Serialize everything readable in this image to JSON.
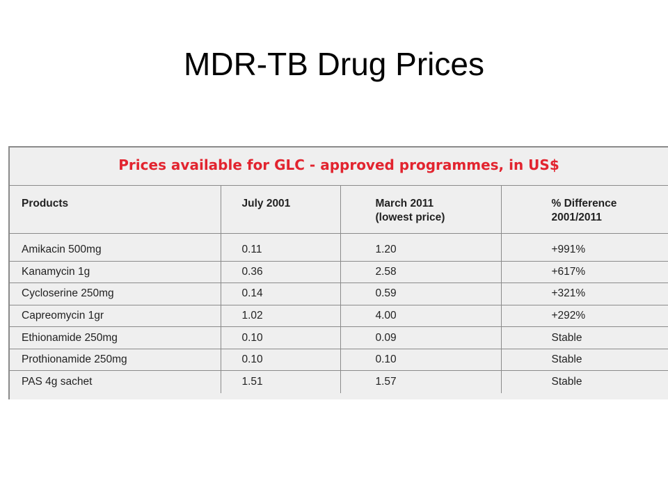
{
  "slide": {
    "title": "MDR-TB Drug Prices"
  },
  "table": {
    "caption": "Prices available for GLC - approved programmes, in US$",
    "headers": [
      {
        "line1": "Products",
        "line2": ""
      },
      {
        "line1": "July 2001",
        "line2": ""
      },
      {
        "line1": "March 2011",
        "line2": "(lowest price)"
      },
      {
        "line1": "% Difference",
        "line2": "2001/2011"
      }
    ],
    "rows": [
      [
        "Amikacin 500mg",
        "0.11",
        "1.20",
        "+991%"
      ],
      [
        "Kanamycin 1g",
        "0.36",
        "2.58",
        "+617%"
      ],
      [
        "Cycloserine 250mg",
        "0.14",
        "0.59",
        "+321%"
      ],
      [
        "Capreomycin 1gr",
        "1.02",
        "4.00",
        "+292%"
      ],
      [
        "Ethionamide 250mg",
        "0.10",
        "0.09",
        "Stable"
      ],
      [
        "Prothionamide 250mg",
        "0.10",
        "0.10",
        "Stable"
      ],
      [
        "PAS 4g sachet",
        "1.51",
        "1.57",
        "Stable"
      ]
    ],
    "colors": {
      "caption": "#e2242f",
      "background": "#efefef",
      "rules": "#8a8a8a"
    }
  }
}
